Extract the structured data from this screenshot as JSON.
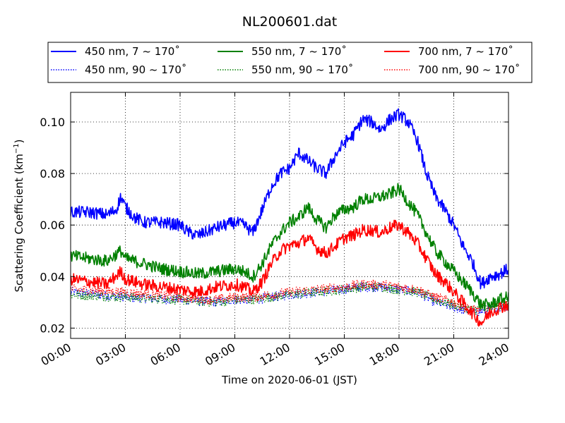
{
  "chart_data": {
    "type": "line",
    "title": "NL200601.dat",
    "xlabel": "Time on 2020-06-01 (JST)",
    "ylabel": "Scattering Coefficient (km",
    "ylabel_sup": "−1",
    "ylabel_end": ")",
    "x_ticks": [
      "00:00",
      "03:00",
      "06:00",
      "09:00",
      "12:00",
      "15:00",
      "18:00",
      "21:00",
      "24:00"
    ],
    "y_ticks": [
      "0.02",
      "0.04",
      "0.06",
      "0.08",
      "0.10"
    ],
    "xlim": [
      0,
      24
    ],
    "ylim": [
      0.016,
      0.1115
    ],
    "grid": true,
    "legend_position": "above plot",
    "series": [
      {
        "name": "450 nm, 7 ~ 170˚",
        "color": "#0000ff",
        "style": "solid",
        "x": [
          0,
          1,
          2,
          2.5,
          2.75,
          3,
          3.5,
          4,
          5,
          6,
          6.5,
          7,
          8,
          8.5,
          9,
          9.5,
          10,
          10.5,
          11,
          11.5,
          12,
          12.5,
          13,
          13.5,
          14,
          14.5,
          15,
          15.5,
          16,
          16.5,
          17,
          17.5,
          18,
          18.5,
          19,
          19.5,
          20,
          20.5,
          21,
          21.5,
          22,
          22.5,
          23,
          23.5,
          24
        ],
        "y": [
          0.065,
          0.065,
          0.064,
          0.066,
          0.071,
          0.067,
          0.063,
          0.061,
          0.061,
          0.06,
          0.057,
          0.056,
          0.059,
          0.06,
          0.061,
          0.06,
          0.057,
          0.066,
          0.075,
          0.08,
          0.082,
          0.088,
          0.085,
          0.082,
          0.08,
          0.087,
          0.092,
          0.095,
          0.101,
          0.1,
          0.097,
          0.101,
          0.103,
          0.1,
          0.093,
          0.08,
          0.071,
          0.066,
          0.06,
          0.052,
          0.046,
          0.037,
          0.04,
          0.041,
          0.043
        ]
      },
      {
        "name": "450 nm, 90 ~ 170˚",
        "color": "#0000ff",
        "style": "dotted",
        "x": [
          0,
          3,
          6,
          8,
          9,
          10,
          12,
          15,
          16,
          17,
          18,
          19,
          20,
          21,
          22,
          23,
          24
        ],
        "y": [
          0.034,
          0.032,
          0.031,
          0.03,
          0.031,
          0.031,
          0.033,
          0.035,
          0.036,
          0.036,
          0.035,
          0.034,
          0.03,
          0.028,
          0.026,
          0.027,
          0.029
        ]
      },
      {
        "name": "550 nm, 7 ~ 170˚",
        "color": "#008000",
        "style": "solid",
        "x": [
          0,
          1,
          2,
          2.75,
          3,
          4,
          5,
          6,
          7,
          8,
          9,
          9.5,
          10,
          10.5,
          11,
          11.5,
          12,
          12.5,
          13,
          13.5,
          14,
          14.5,
          15,
          15.5,
          16,
          16.5,
          17,
          17.5,
          18,
          18.5,
          19,
          19.5,
          20,
          20.5,
          21,
          21.5,
          22,
          22.5,
          23,
          23.5,
          24
        ],
        "y": [
          0.048,
          0.047,
          0.046,
          0.05,
          0.047,
          0.045,
          0.043,
          0.042,
          0.041,
          0.042,
          0.043,
          0.042,
          0.04,
          0.045,
          0.052,
          0.057,
          0.061,
          0.063,
          0.067,
          0.062,
          0.059,
          0.064,
          0.066,
          0.067,
          0.07,
          0.07,
          0.071,
          0.072,
          0.074,
          0.069,
          0.064,
          0.057,
          0.05,
          0.046,
          0.042,
          0.038,
          0.034,
          0.029,
          0.029,
          0.031,
          0.032
        ]
      },
      {
        "name": "550 nm, 90 ~ 170˚",
        "color": "#008000",
        "style": "dotted",
        "x": [
          0,
          3,
          6,
          8,
          9,
          10,
          12,
          15,
          16,
          17,
          18,
          19,
          20,
          21,
          22,
          23,
          24
        ],
        "y": [
          0.033,
          0.032,
          0.031,
          0.03,
          0.031,
          0.031,
          0.033,
          0.035,
          0.036,
          0.036,
          0.035,
          0.034,
          0.031,
          0.029,
          0.027,
          0.028,
          0.03
        ]
      },
      {
        "name": "700 nm, 7 ~ 170˚",
        "color": "#ff0000",
        "style": "solid",
        "x": [
          0,
          1,
          2,
          2.75,
          3,
          4,
          5,
          6,
          7,
          8,
          9,
          9.5,
          10,
          10.5,
          11,
          11.5,
          12,
          12.5,
          13,
          13.5,
          14,
          14.5,
          15,
          15.5,
          16,
          16.5,
          17,
          17.5,
          18,
          18.5,
          19,
          19.5,
          20,
          20.5,
          21,
          21.5,
          22,
          22.5,
          23,
          23.5,
          24
        ],
        "y": [
          0.039,
          0.038,
          0.037,
          0.042,
          0.039,
          0.037,
          0.036,
          0.035,
          0.034,
          0.036,
          0.037,
          0.036,
          0.034,
          0.038,
          0.045,
          0.05,
          0.052,
          0.053,
          0.055,
          0.051,
          0.049,
          0.052,
          0.055,
          0.056,
          0.058,
          0.058,
          0.057,
          0.059,
          0.06,
          0.057,
          0.053,
          0.047,
          0.041,
          0.038,
          0.034,
          0.03,
          0.026,
          0.022,
          0.026,
          0.028,
          0.029
        ]
      },
      {
        "name": "700 nm, 90 ~ 170˚",
        "color": "#ff0000",
        "style": "dotted",
        "x": [
          0,
          3,
          6,
          8,
          9,
          10,
          12,
          15,
          16,
          17,
          18,
          19,
          20,
          21,
          22,
          23,
          24
        ],
        "y": [
          0.035,
          0.034,
          0.032,
          0.031,
          0.032,
          0.032,
          0.034,
          0.036,
          0.037,
          0.037,
          0.036,
          0.035,
          0.032,
          0.03,
          0.027,
          0.028,
          0.03
        ]
      }
    ]
  }
}
